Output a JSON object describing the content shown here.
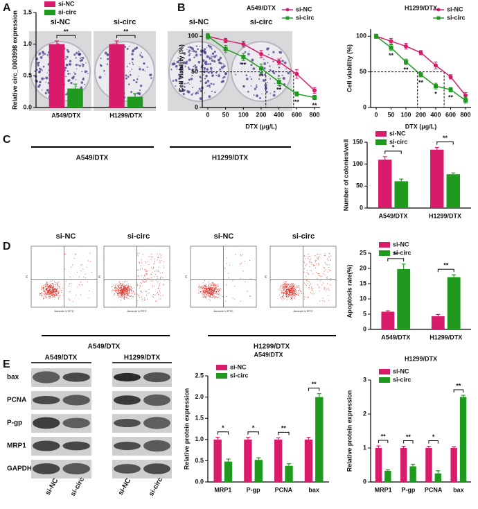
{
  "figure": {
    "panel_labels": [
      "A",
      "B",
      "C",
      "D",
      "E"
    ],
    "colony": {
      "lanes": [
        "si-NC",
        "si-circ",
        "si-NC",
        "si-circ"
      ],
      "groups": [
        "A549/DTX",
        "H1299/DTX"
      ]
    },
    "flow": {
      "lanes": [
        "si-NC",
        "si-circ",
        "si-NC",
        "si-circ"
      ],
      "groups": [
        "A549/DTX",
        "H1299/DTX"
      ],
      "x_label": "Annexin V-FITC",
      "y_label": "PI"
    },
    "blot": {
      "groups": [
        "A549/DTX",
        "H1299/DTX"
      ],
      "proteins": [
        "bax",
        "PCNA",
        "P-gp",
        "MRP1",
        "GAPDH"
      ],
      "lanes": [
        "si-NC",
        "si-circ",
        "si-NC",
        "si-circ"
      ]
    }
  },
  "chart_data": [
    {
      "type": "bar",
      "ylabel": "Relative circ_0003998 expression",
      "categories": [
        "A549/DTX",
        "H1299/DTX"
      ],
      "series": [
        {
          "name": "si-NC",
          "color": "#d81b6a",
          "values": [
            1.0,
            1.0
          ],
          "errors": [
            0.05,
            0.05
          ]
        },
        {
          "name": "si-circ",
          "color": "#1f9a1f",
          "values": [
            0.3,
            0.17
          ],
          "errors": [
            0.07,
            0.05
          ]
        }
      ],
      "significance": [
        "**",
        "**"
      ],
      "ylim": [
        0,
        1.5
      ],
      "yticks": [
        {
          "value": 0,
          "label": "0.0"
        },
        {
          "value": 0.5,
          "label": "0.5"
        },
        {
          "value": 1,
          "label": "1.0"
        },
        {
          "value": 1.5,
          "label": "1.5"
        }
      ],
      "legend": "upper left",
      "grid": false
    },
    {
      "type": "line",
      "title": "A549/DTX",
      "xlabel": "DTX (μg/L)",
      "ylabel": "Cell viability (%)",
      "categories": [
        "0",
        "50",
        "100",
        "200",
        "400",
        "600",
        "800"
      ],
      "series": [
        {
          "name": "si-NC",
          "color": "#d81b6a",
          "marker": "circle",
          "values": [
            100,
            94,
            89,
            75,
            64,
            47,
            24
          ],
          "errors": [
            3,
            3,
            4,
            5,
            4,
            6,
            4
          ]
        },
        {
          "name": "si-circ",
          "color": "#1f9a1f",
          "marker": "square",
          "values": [
            100,
            82,
            71,
            55,
            36,
            19,
            14
          ],
          "errors": [
            4,
            5,
            5,
            6,
            5,
            3,
            3
          ]
        }
      ],
      "significance": [
        null,
        null,
        "**",
        "**",
        "**",
        "**",
        "**"
      ],
      "reference_y": 50,
      "ylim": [
        0,
        110
      ],
      "yticks": [
        0,
        50,
        100
      ],
      "legend": "upper right",
      "grid": false
    },
    {
      "type": "line",
      "title": "H1299/DTX",
      "xlabel": "DTX (μg/L)",
      "ylabel": "Cell viability (%)",
      "categories": [
        "0",
        "50",
        "100",
        "200",
        "400",
        "600",
        "800"
      ],
      "series": [
        {
          "name": "si-NC",
          "color": "#d81b6a",
          "marker": "circle",
          "values": [
            100,
            93,
            86,
            77,
            59,
            43,
            17
          ],
          "errors": [
            2,
            4,
            4,
            3,
            5,
            3,
            4
          ]
        },
        {
          "name": "si-circ",
          "color": "#1f9a1f",
          "marker": "square",
          "values": [
            100,
            84,
            64,
            46,
            30,
            25,
            10
          ],
          "errors": [
            3,
            4,
            4,
            3,
            4,
            3,
            4
          ]
        }
      ],
      "significance": [
        null,
        "**",
        "**",
        "**",
        "*",
        "**",
        null
      ],
      "reference_y": 50,
      "ylim": [
        0,
        110
      ],
      "yticks": [
        0,
        50,
        100
      ],
      "legend": "upper right",
      "grid": false
    },
    {
      "type": "bar",
      "ylabel": "Number of colonies/well",
      "categories": [
        "A549/DTX",
        "H1299/DTX"
      ],
      "series": [
        {
          "name": "si-NC",
          "color": "#d81b6a",
          "values": [
            110,
            133
          ],
          "errors": [
            7,
            5
          ]
        },
        {
          "name": "si-circ",
          "color": "#1f9a1f",
          "values": [
            61,
            77
          ],
          "errors": [
            5,
            3
          ]
        }
      ],
      "significance": [
        "*",
        "**"
      ],
      "ylim": [
        0,
        150
      ],
      "yticks": [
        0,
        50,
        100,
        150
      ],
      "legend": "upper left",
      "grid": false
    },
    {
      "type": "bar",
      "ylabel": "Apoptosis rate(%)",
      "categories": [
        "A549/DTX",
        "H1299/DTX"
      ],
      "series": [
        {
          "name": "si-NC",
          "color": "#d81b6a",
          "values": [
            5.8,
            4.3
          ],
          "errors": [
            0.3,
            0.6
          ]
        },
        {
          "name": "si-circ",
          "color": "#1f9a1f",
          "values": [
            19.8,
            17.1
          ],
          "errors": [
            1.6,
            0.8
          ]
        }
      ],
      "significance": [
        "**",
        "**"
      ],
      "ylim": [
        0,
        25
      ],
      "yticks": [
        0,
        5,
        10,
        15,
        20,
        25
      ],
      "legend": "upper left",
      "grid": false
    },
    {
      "type": "bar",
      "title": "A549/DTX",
      "ylabel": "Relative protein expression",
      "categories": [
        "MRP1",
        "P-gp",
        "PCNA",
        "bax"
      ],
      "series": [
        {
          "name": "si-NC",
          "color": "#d81b6a",
          "values": [
            1,
            1,
            1,
            1
          ],
          "errors": [
            0.05,
            0.05,
            0.04,
            0.05
          ]
        },
        {
          "name": "si-circ",
          "color": "#1f9a1f",
          "values": [
            0.48,
            0.52,
            0.38,
            2.0
          ],
          "errors": [
            0.06,
            0.05,
            0.05,
            0.08
          ]
        }
      ],
      "significance": [
        "*",
        "*",
        "**",
        "**"
      ],
      "ylim": [
        0,
        2.5
      ],
      "yticks": [
        {
          "value": 0,
          "label": "0.0"
        },
        {
          "value": 0.5,
          "label": "0.5"
        },
        {
          "value": 1,
          "label": "1.0"
        },
        {
          "value": 1.5,
          "label": "1.5"
        },
        {
          "value": 2,
          "label": "2.0"
        },
        {
          "value": 2.5,
          "label": "2.5"
        }
      ],
      "legend": "upper left",
      "grid": false
    },
    {
      "type": "bar",
      "title": "H1299/DTX",
      "ylabel": "Relative protein expression",
      "categories": [
        "MRP1",
        "P-gp",
        "PCNA",
        "bax"
      ],
      "series": [
        {
          "name": "si-NC",
          "color": "#d81b6a",
          "values": [
            1,
            1,
            1,
            1
          ],
          "errors": [
            0.06,
            0.05,
            0.05,
            0.04
          ]
        },
        {
          "name": "si-circ",
          "color": "#1f9a1f",
          "values": [
            0.33,
            0.46,
            0.25,
            2.5
          ],
          "errors": [
            0.03,
            0.06,
            0.08,
            0.05
          ]
        }
      ],
      "significance": [
        "**",
        "**",
        "*",
        "**"
      ],
      "ylim": [
        0,
        3
      ],
      "yticks": [
        0,
        1,
        2,
        3
      ],
      "legend": "upper left",
      "grid": false
    }
  ]
}
